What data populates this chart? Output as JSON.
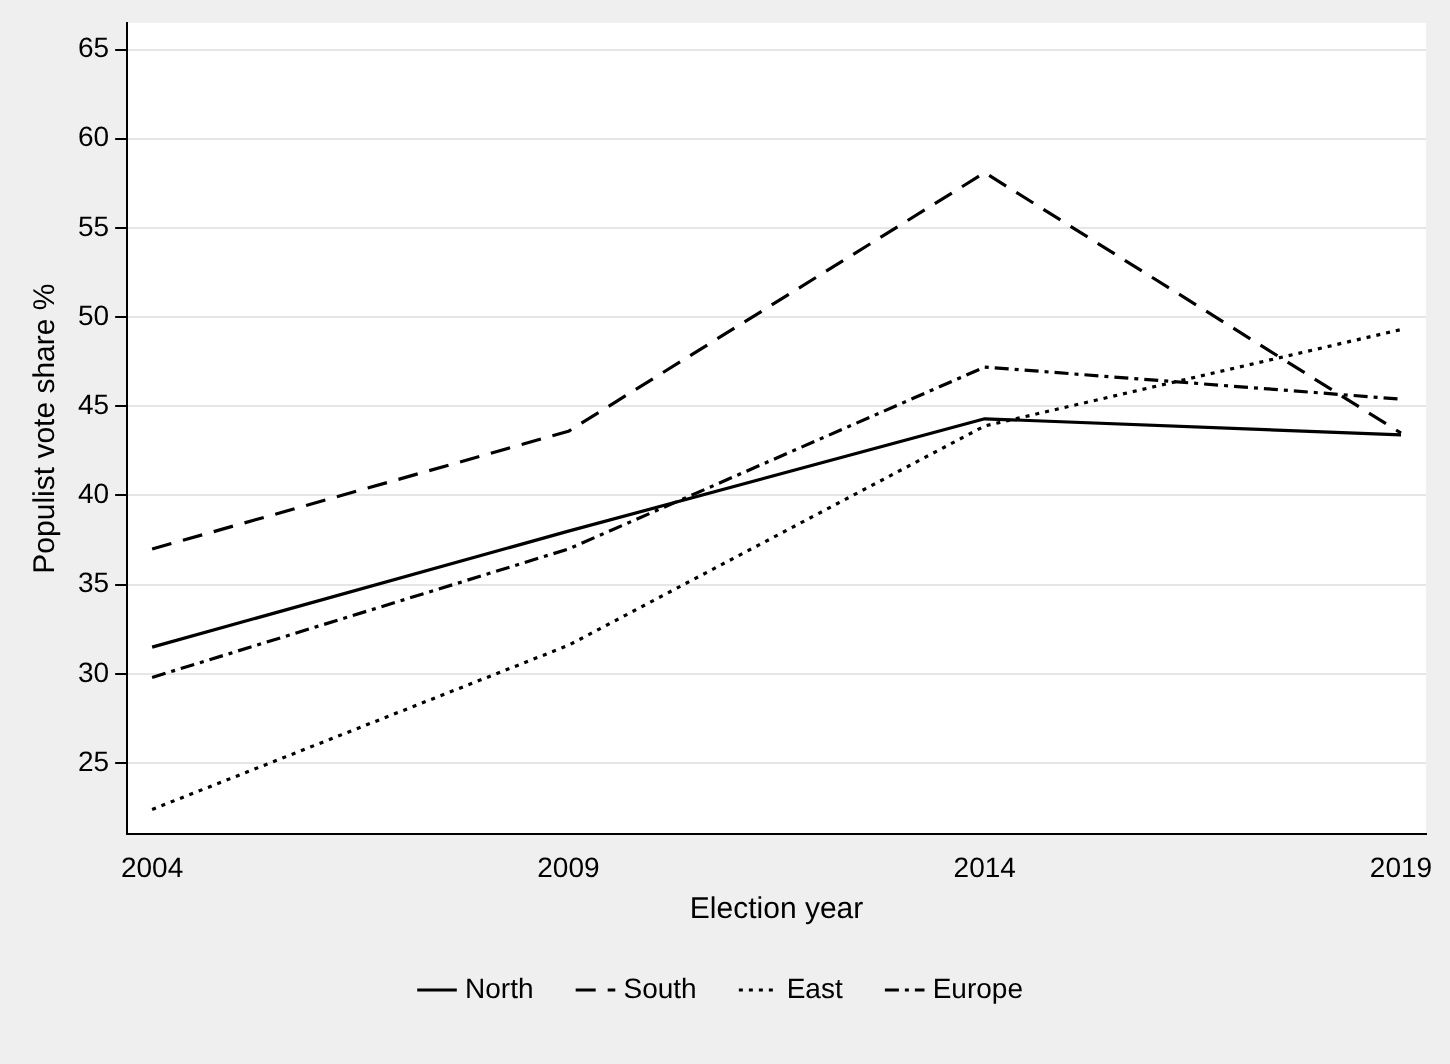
{
  "chart_data": {
    "type": "line",
    "xlabel": "Election year",
    "ylabel": "Populist vote share %",
    "x": [
      2004,
      2009,
      2014,
      2019
    ],
    "xlim": [
      2003.7,
      2019.3
    ],
    "xticks": [
      2004,
      2009,
      2014,
      2019
    ],
    "ylim": [
      21,
      66.5
    ],
    "yticks": [
      25,
      30,
      35,
      40,
      45,
      50,
      55,
      60,
      65
    ],
    "grid": "y",
    "legend": "bottom",
    "marker": "none",
    "series": [
      {
        "name": "North",
        "color": "#000000",
        "line_style": "solid",
        "values": [
          31.5,
          38,
          44.3,
          43.4
        ]
      },
      {
        "name": "South",
        "color": "#000000",
        "line_style": "dashed",
        "values": [
          37,
          43.6,
          58.1,
          43.5
        ]
      },
      {
        "name": "East",
        "color": "#000000",
        "line_style": "dotted",
        "values": [
          22.4,
          31.6,
          43.9,
          49.3
        ]
      },
      {
        "name": "Europe",
        "color": "#000000",
        "line_style": "dashdot",
        "values": [
          29.8,
          37,
          47.2,
          45.4
        ]
      }
    ]
  }
}
